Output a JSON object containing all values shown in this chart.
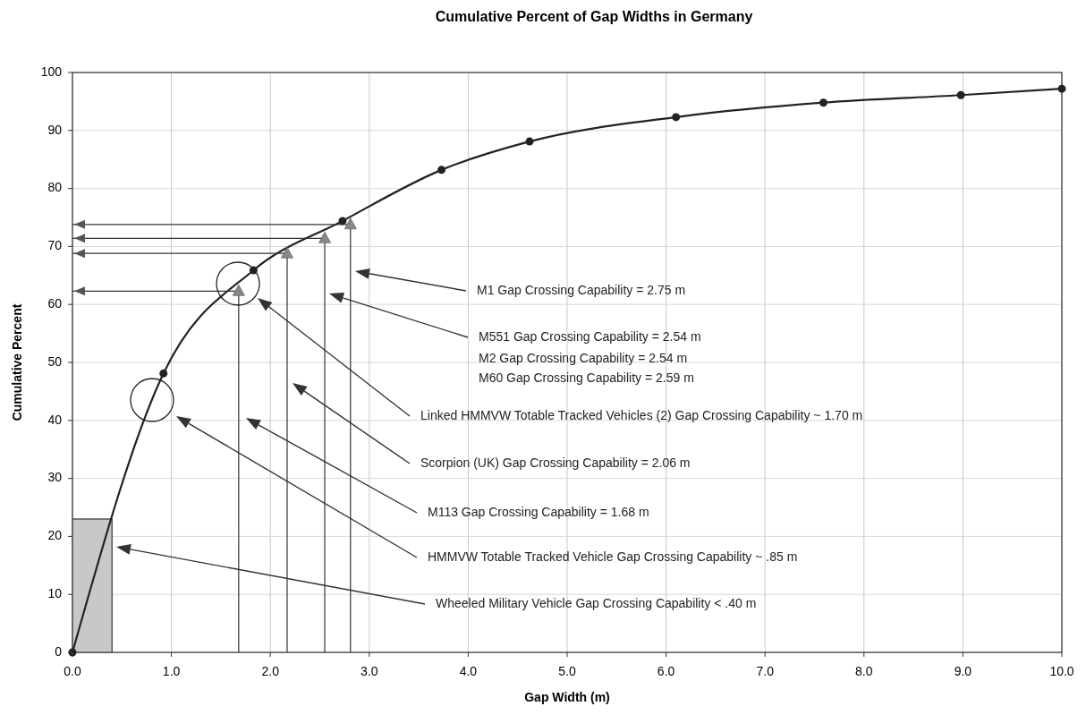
{
  "chart_data": {
    "type": "line",
    "title": "Cumulative Percent of Gap Widths in Germany",
    "xlabel": "Gap Width (m)",
    "ylabel": "Cumulative Percent",
    "xlim": [
      0,
      10
    ],
    "xticks": [
      {
        "value": 0,
        "label": "0.0"
      },
      {
        "value": 1,
        "label": "1.0"
      },
      {
        "value": 2,
        "label": "2.0"
      },
      {
        "value": 3,
        "label": "3.0"
      },
      {
        "value": 4,
        "label": "4.0"
      },
      {
        "value": 5,
        "label": "5.0"
      },
      {
        "value": 6,
        "label": "6.0"
      },
      {
        "value": 7,
        "label": "7.0"
      },
      {
        "value": 8,
        "label": "8.0"
      },
      {
        "value": 9,
        "label": "9.0"
      },
      {
        "value": 10,
        "label": "10.0"
      }
    ],
    "ylim": [
      0,
      100
    ],
    "yticks": [
      0,
      10,
      20,
      30,
      40,
      50,
      60,
      70,
      80,
      90,
      100
    ],
    "grid": true,
    "series": [
      {
        "type": "area",
        "color": "#c8c8c8",
        "x": [
          0,
          0.4
        ],
        "values": [
          23,
          23
        ],
        "marker": "none"
      },
      {
        "color": "#222222",
        "x": [
          0,
          0.92,
          1.83,
          2.73,
          3.73,
          4.62,
          6.1,
          7.59,
          8.98,
          10
        ],
        "values": [
          0,
          48.1,
          65.9,
          74.4,
          83.2,
          88.1,
          92.3,
          94.8,
          96.1,
          97.2
        ],
        "marker": "circle"
      },
      {
        "type": "scatter",
        "color": "#888888",
        "x": [
          1.68,
          2.17,
          2.55,
          2.81
        ],
        "values": [
          62.3,
          68.8,
          71.4,
          73.8
        ],
        "marker": "triangle",
        "errors": [
          [
            0,
            62.3
          ],
          [
            0,
            68.8
          ],
          [
            0,
            71.4
          ],
          [
            0,
            73.8
          ]
        ],
        "xerrors": [
          [
            0,
            1.68
          ],
          [
            0,
            2.17
          ],
          [
            0,
            2.55
          ],
          [
            0,
            2.81
          ]
        ]
      }
    ],
    "annotations": [
      "M1 Gap Crossing Capability = 2.75 m",
      "M551 Gap Crossing Capability = 2.54 m",
      "M2 Gap Crossing Capability = 2.54 m",
      "M60 Gap Crossing Capability = 2.59 m",
      "Linked HMMVW Totable Tracked Vehicles (2) Gap Crossing Capability ~ 1.70 m",
      "Scorpion (UK) Gap Crossing Capability = 2.06 m",
      "M113 Gap Crossing Capability = 1.68 m",
      "HMMVW Totable Tracked Vehicle Gap Crossing Capability ~ .85 m",
      "Wheeled Military Vehicle Gap Crossing Capability < .40 m"
    ]
  }
}
